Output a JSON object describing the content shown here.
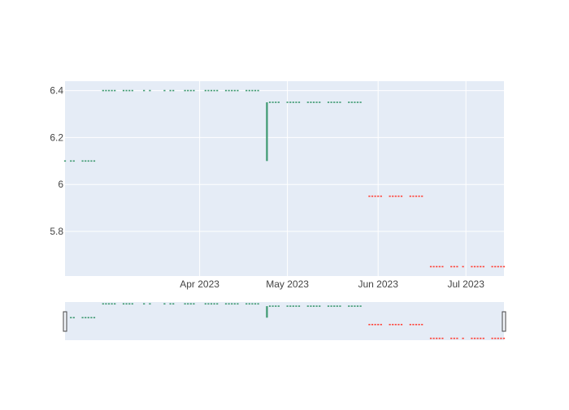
{
  "chart_data": {
    "type": "candlestick",
    "title": "",
    "xlabel": "",
    "ylabel": "",
    "ylim": [
      5.61,
      6.44
    ],
    "xlim": [
      "2023-02-14",
      "2023-07-14"
    ],
    "x_tick_labels": [
      "Apr 2023",
      "May 2023",
      "Jun 2023",
      "Jul 2023"
    ],
    "y_tick_labels": [
      "5.8",
      "6",
      "6.2",
      "6.4"
    ],
    "y_ticks": [
      5.8,
      6.0,
      6.2,
      6.4
    ],
    "grid": true,
    "rangeslider": true,
    "increasing_color": "#3d9970",
    "decreasing_color": "#ff4136",
    "plot_bg": "#e5ecf6",
    "gridline_color": "#ffffff",
    "series": [
      {
        "dates": [
          "2023-02-14",
          "2023-02-16",
          "2023-02-17",
          "2023-02-20",
          "2023-02-21",
          "2023-02-22",
          "2023-02-23",
          "2023-02-24",
          "2023-02-27",
          "2023-02-28",
          "2023-03-01",
          "2023-03-02",
          "2023-03-03",
          "2023-03-06",
          "2023-03-07",
          "2023-03-08",
          "2023-03-09",
          "2023-03-13",
          "2023-03-15",
          "2023-03-20",
          "2023-03-22",
          "2023-03-23",
          "2023-03-27",
          "2023-03-28",
          "2023-03-29",
          "2023-03-30",
          "2023-04-03",
          "2023-04-04",
          "2023-04-05",
          "2023-04-06",
          "2023-04-07",
          "2023-04-10",
          "2023-04-11",
          "2023-04-12",
          "2023-04-13",
          "2023-04-14",
          "2023-04-17",
          "2023-04-18",
          "2023-04-19",
          "2023-04-20",
          "2023-04-21",
          "2023-04-24",
          "2023-04-25",
          "2023-04-26",
          "2023-04-27",
          "2023-04-28",
          "2023-05-01",
          "2023-05-02",
          "2023-05-03",
          "2023-05-04",
          "2023-05-05",
          "2023-05-08",
          "2023-05-09",
          "2023-05-10",
          "2023-05-11",
          "2023-05-12",
          "2023-05-15",
          "2023-05-16",
          "2023-05-17",
          "2023-05-18",
          "2023-05-19",
          "2023-05-22",
          "2023-05-23",
          "2023-05-24",
          "2023-05-25",
          "2023-05-26"
        ],
        "open": [
          6.1,
          6.1,
          6.1,
          6.1,
          6.1,
          6.1,
          6.1,
          6.1,
          6.4,
          6.4,
          6.4,
          6.4,
          6.4,
          6.4,
          6.4,
          6.4,
          6.4,
          6.4,
          6.4,
          6.4,
          6.4,
          6.4,
          6.4,
          6.4,
          6.4,
          6.4,
          6.4,
          6.4,
          6.4,
          6.4,
          6.4,
          6.4,
          6.4,
          6.4,
          6.4,
          6.4,
          6.4,
          6.4,
          6.4,
          6.4,
          6.4,
          6.1,
          6.35,
          6.35,
          6.35,
          6.35,
          6.35,
          6.35,
          6.35,
          6.35,
          6.35,
          6.35,
          6.35,
          6.35,
          6.35,
          6.35,
          6.35,
          6.35,
          6.35,
          6.35,
          6.35,
          6.35,
          6.35,
          6.35,
          6.35,
          6.35
        ],
        "close": [
          6.1,
          6.1,
          6.1,
          6.1,
          6.1,
          6.1,
          6.1,
          6.1,
          6.4,
          6.4,
          6.4,
          6.4,
          6.4,
          6.4,
          6.4,
          6.4,
          6.4,
          6.4,
          6.4,
          6.4,
          6.4,
          6.4,
          6.4,
          6.4,
          6.4,
          6.4,
          6.4,
          6.4,
          6.4,
          6.4,
          6.4,
          6.4,
          6.4,
          6.4,
          6.4,
          6.4,
          6.4,
          6.4,
          6.4,
          6.4,
          6.4,
          6.35,
          6.35,
          6.35,
          6.35,
          6.35,
          6.35,
          6.35,
          6.35,
          6.35,
          6.35,
          6.35,
          6.35,
          6.35,
          6.35,
          6.35,
          6.35,
          6.35,
          6.35,
          6.35,
          6.35,
          6.35,
          6.35,
          6.35,
          6.35,
          6.35
        ],
        "direction": "increasing"
      },
      {
        "dates": [
          "2023-05-29",
          "2023-05-30",
          "2023-05-31",
          "2023-06-01",
          "2023-06-02",
          "2023-06-05",
          "2023-06-06",
          "2023-06-07",
          "2023-06-08",
          "2023-06-09",
          "2023-06-12",
          "2023-06-13",
          "2023-06-14",
          "2023-06-15",
          "2023-06-16",
          "2023-06-19",
          "2023-06-20",
          "2023-06-21",
          "2023-06-22",
          "2023-06-23",
          "2023-06-26",
          "2023-06-27",
          "2023-06-28",
          "2023-06-30",
          "2023-07-03",
          "2023-07-04",
          "2023-07-05",
          "2023-07-06",
          "2023-07-07",
          "2023-07-10",
          "2023-07-11",
          "2023-07-12",
          "2023-07-13",
          "2023-07-14"
        ],
        "open": [
          5.95,
          5.95,
          5.95,
          5.95,
          5.95,
          5.95,
          5.95,
          5.95,
          5.95,
          5.95,
          5.95,
          5.95,
          5.95,
          5.95,
          5.95,
          5.65,
          5.65,
          5.65,
          5.65,
          5.65,
          5.65,
          5.65,
          5.65,
          5.65,
          5.65,
          5.65,
          5.65,
          5.65,
          5.65,
          5.65,
          5.65,
          5.65,
          5.65,
          5.65
        ],
        "close": [
          5.95,
          5.95,
          5.95,
          5.95,
          5.95,
          5.95,
          5.95,
          5.95,
          5.95,
          5.95,
          5.95,
          5.95,
          5.95,
          5.95,
          5.95,
          5.65,
          5.65,
          5.65,
          5.65,
          5.65,
          5.65,
          5.65,
          5.65,
          5.65,
          5.65,
          5.65,
          5.65,
          5.65,
          5.65,
          5.65,
          5.65,
          5.65,
          5.65,
          5.65
        ],
        "direction": "decreasing"
      }
    ]
  }
}
